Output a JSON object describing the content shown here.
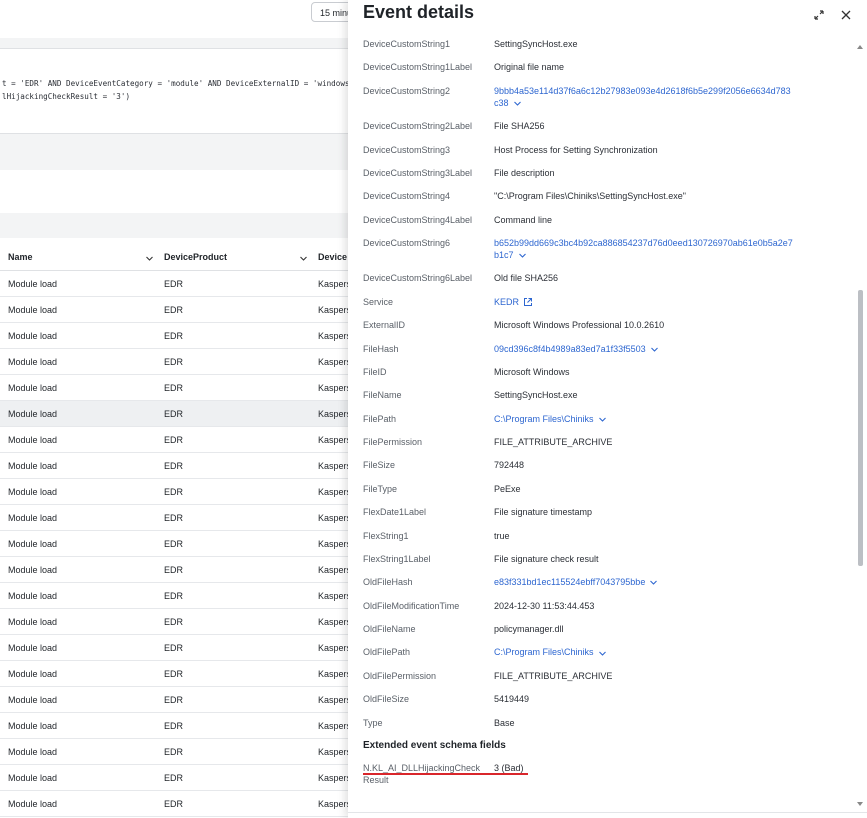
{
  "toolbar": {
    "time_button": "15 minu"
  },
  "query": {
    "lines": [
      "t = 'EDR' AND DeviceEventCategory = 'module' AND DeviceExternalID = 'windows",
      "lHijackingCheckResult = '3')"
    ]
  },
  "table": {
    "columns": [
      "Name",
      "DeviceProduct",
      "Device"
    ],
    "rows": [
      [
        "Module load",
        "EDR",
        "Kaspers"
      ],
      [
        "Module load",
        "EDR",
        "Kaspers"
      ],
      [
        "Module load",
        "EDR",
        "Kaspers"
      ],
      [
        "Module load",
        "EDR",
        "Kaspers"
      ],
      [
        "Module load",
        "EDR",
        "Kaspers"
      ],
      [
        "Module load",
        "EDR",
        "Kaspers"
      ],
      [
        "Module load",
        "EDR",
        "Kaspers"
      ],
      [
        "Module load",
        "EDR",
        "Kaspers"
      ],
      [
        "Module load",
        "EDR",
        "Kaspers"
      ],
      [
        "Module load",
        "EDR",
        "Kaspers"
      ],
      [
        "Module load",
        "EDR",
        "Kaspers"
      ],
      [
        "Module load",
        "EDR",
        "Kaspers"
      ],
      [
        "Module load",
        "EDR",
        "Kaspers"
      ],
      [
        "Module load",
        "EDR",
        "Kaspers"
      ],
      [
        "Module load",
        "EDR",
        "Kaspers"
      ],
      [
        "Module load",
        "EDR",
        "Kaspers"
      ],
      [
        "Module load",
        "EDR",
        "Kaspers"
      ],
      [
        "Module load",
        "EDR",
        "Kaspers"
      ],
      [
        "Module load",
        "EDR",
        "Kaspers"
      ],
      [
        "Module load",
        "EDR",
        "Kaspers"
      ],
      [
        "Module load",
        "EDR",
        "Kaspers"
      ]
    ],
    "selected_row": 5
  },
  "panel": {
    "title": "Event details",
    "fields": [
      {
        "label": "DeviceCustomString1",
        "value": "SettingSyncHost.exe"
      },
      {
        "label": "DeviceCustomString1Label",
        "value": "Original file name"
      },
      {
        "label": "DeviceCustomString2",
        "value": "9bbb4a53e114d37f6a6c12b27983e093e4d2618f6b5e299f2056e6634d783c38",
        "link": true,
        "expand": true
      },
      {
        "label": "DeviceCustomString2Label",
        "value": "File SHA256"
      },
      {
        "label": "DeviceCustomString3",
        "value": "Host Process for Setting Synchronization"
      },
      {
        "label": "DeviceCustomString3Label",
        "value": "File description"
      },
      {
        "label": "DeviceCustomString4",
        "value": "\"C:\\Program Files\\Chiniks\\SettingSyncHost.exe\""
      },
      {
        "label": "DeviceCustomString4Label",
        "value": "Command line"
      },
      {
        "label": "DeviceCustomString6",
        "value": "b652b99dd669c3bc4b92ca886854237d76d0eed130726970ab61e0b5a2e7b1c7",
        "link": true,
        "expand": true
      },
      {
        "label": "DeviceCustomString6Label",
        "value": "Old file SHA256"
      },
      {
        "label": "Service",
        "value": "KEDR",
        "link": true,
        "external": true
      },
      {
        "label": "ExternalID",
        "value": "Microsoft Windows Professional 10.0.2610"
      },
      {
        "label": "FileHash",
        "value": "09cd396c8f4b4989a83ed7a1f33f5503",
        "link": true,
        "expand": true
      },
      {
        "label": "FileID",
        "value": "Microsoft Windows"
      },
      {
        "label": "FileName",
        "value": "SettingSyncHost.exe"
      },
      {
        "label": "FilePath",
        "value": "C:\\Program Files\\Chiniks",
        "link": true,
        "expand": true
      },
      {
        "label": "FilePermission",
        "value": "FILE_ATTRIBUTE_ARCHIVE"
      },
      {
        "label": "FileSize",
        "value": "792448"
      },
      {
        "label": "FileType",
        "value": "PeExe"
      },
      {
        "label": "FlexDate1Label",
        "value": "File signature timestamp"
      },
      {
        "label": "FlexString1",
        "value": "true"
      },
      {
        "label": "FlexString1Label",
        "value": "File signature check result"
      },
      {
        "label": "OldFileHash",
        "value": "e83f331bd1ec115524ebff7043795bbe",
        "link": true,
        "expand": true
      },
      {
        "label": "OldFileModificationTime",
        "value": "2024-12-30 11:53:44.453"
      },
      {
        "label": "OldFileName",
        "value": "policymanager.dll"
      },
      {
        "label": "OldFilePath",
        "value": "C:\\Program Files\\Chiniks",
        "link": true,
        "expand": true
      },
      {
        "label": "OldFilePermission",
        "value": "FILE_ATTRIBUTE_ARCHIVE"
      },
      {
        "label": "OldFileSize",
        "value": "5419449"
      },
      {
        "label": "Type",
        "value": "Base"
      }
    ],
    "extended_title": "Extended event schema fields",
    "extended_fields": [
      {
        "label": "N.KL_AI_DLLHijackingCheckResult",
        "value": "3 (Bad)"
      }
    ]
  }
}
